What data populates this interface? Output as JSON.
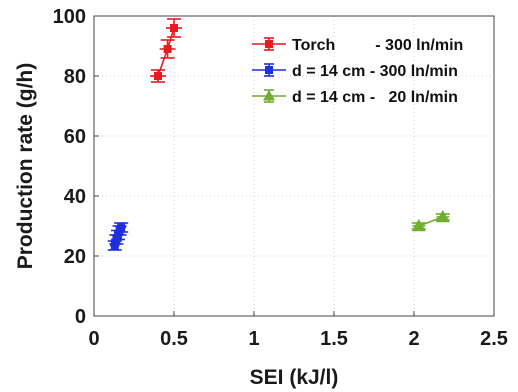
{
  "chart_data": {
    "type": "scatter",
    "xlabel": "SEI (kJ/l)",
    "ylabel": "Production rate (g/h)",
    "xlim": [
      0,
      2.5
    ],
    "ylim": [
      0,
      100
    ],
    "xticks": [
      "0",
      "0.5",
      "1",
      "1.5",
      "2",
      "2.5"
    ],
    "yticks": [
      "0",
      "20",
      "40",
      "60",
      "80",
      "100"
    ],
    "grid": true,
    "legend_position": "top-right",
    "series": [
      {
        "name": "Torch         - 300 ln/min",
        "color": "#e8191f",
        "marker": "square",
        "points": [
          {
            "x": 0.4,
            "y": 80,
            "err_y": 2,
            "err_x": 0.05
          },
          {
            "x": 0.46,
            "y": 89,
            "err_y": 3,
            "err_x": 0.05
          },
          {
            "x": 0.5,
            "y": 96,
            "err_y": 3,
            "err_x": 0.05
          }
        ]
      },
      {
        "name": "d = 14 cm - 300 ln/min",
        "color": "#1f2fe0",
        "marker": "square",
        "points": [
          {
            "x": 0.13,
            "y": 23.5,
            "err_y": 1.5,
            "err_x": 0.03
          },
          {
            "x": 0.14,
            "y": 25.5,
            "err_y": 1.5,
            "err_x": 0.03
          },
          {
            "x": 0.15,
            "y": 27.0,
            "err_y": 1.5,
            "err_x": 0.03
          },
          {
            "x": 0.16,
            "y": 28.5,
            "err_y": 1.5,
            "err_x": 0.03
          },
          {
            "x": 0.17,
            "y": 29.5,
            "err_y": 1.5,
            "err_x": 0.03
          }
        ]
      },
      {
        "name": "d = 14 cm -   20 ln/min",
        "color": "#6fae2e",
        "marker": "triangle",
        "points": [
          {
            "x": 2.03,
            "y": 30,
            "err_y": 1,
            "err_x": 0.04
          },
          {
            "x": 2.18,
            "y": 33,
            "err_y": 1,
            "err_x": 0.04
          }
        ]
      }
    ]
  }
}
